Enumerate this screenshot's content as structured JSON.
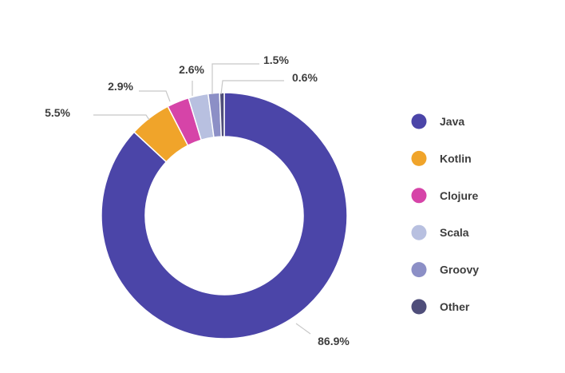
{
  "chart_data": {
    "type": "pie",
    "variant": "donut",
    "title": "",
    "categories": [
      "Java",
      "Kotlin",
      "Clojure",
      "Scala",
      "Groovy",
      "Other"
    ],
    "values": [
      86.9,
      5.5,
      2.9,
      2.6,
      1.5,
      0.6
    ],
    "value_labels": [
      "86.9%",
      "5.5%",
      "2.9%",
      "2.6%",
      "1.5%",
      "0.6%"
    ],
    "colors": [
      "#4b45a8",
      "#f0a42a",
      "#d644a8",
      "#b8c0e0",
      "#8c8fc6",
      "#4f4e7a"
    ],
    "legend": {
      "placement": "right",
      "items": [
        "Java",
        "Kotlin",
        "Clojure",
        "Scala",
        "Groovy",
        "Other"
      ]
    }
  }
}
